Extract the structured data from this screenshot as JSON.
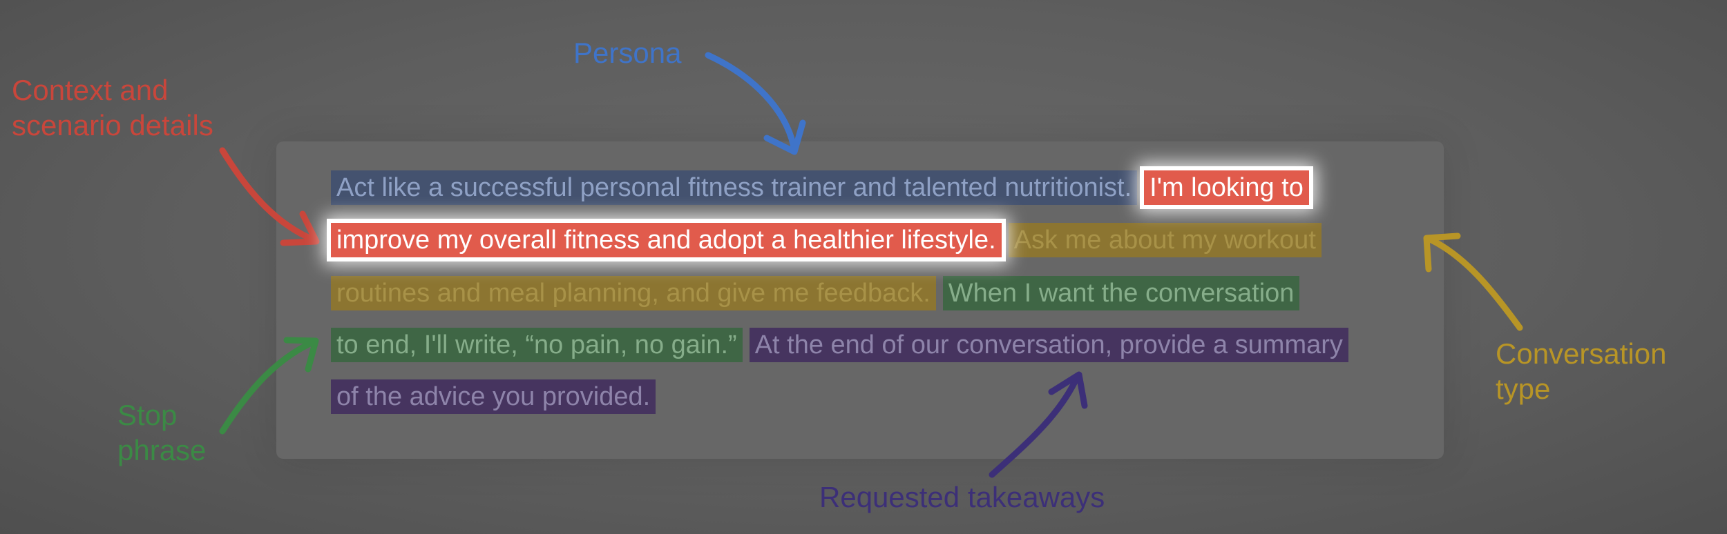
{
  "labels": {
    "persona": "Persona",
    "context": [
      "Context and",
      "scenario details"
    ],
    "conversation_type": [
      "Conversation",
      "type"
    ],
    "stop_phrase": [
      "Stop",
      "phrase"
    ],
    "requested_takeaways": "Requested takeaways"
  },
  "prompt": {
    "line1": {
      "persona": "Act like a successful personal fitness trainer and talented nutritionist.",
      "context_a": "I'm looking to"
    },
    "line2": {
      "context_b": "improve my overall fitness and adopt a healthier lifestyle.",
      "convtype_a": "Ask me about my workout"
    },
    "line3": {
      "convtype_b": "routines and meal planning, and give me feedback.",
      "stop_a": "When I want the conversation"
    },
    "line4": {
      "stop_b": "to end, I'll write, “no pain, no gain.”",
      "takeaway_a": "At the end of our conversation, provide a summary"
    },
    "line5": {
      "takeaway_b": "of the advice you provided."
    }
  },
  "colors": {
    "persona": "#3f74c9",
    "context": "#c9463b",
    "conversation_type": "#b89526",
    "stop_phrase": "#3b8a45",
    "requested_takeaways": "#3c2f78",
    "highlight": "#e15b4c"
  }
}
